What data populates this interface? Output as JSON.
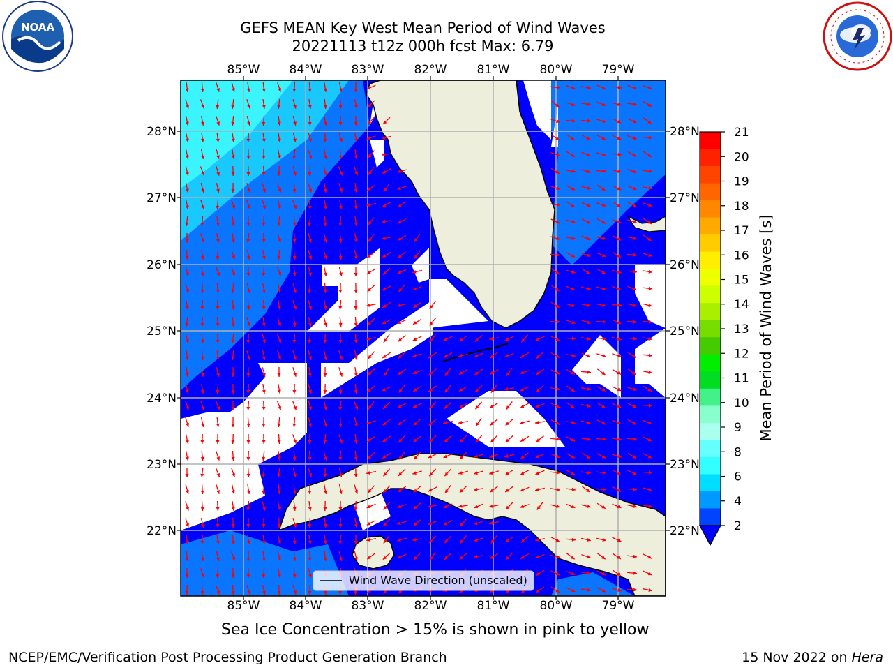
{
  "title_line1": "GEFS MEAN Key West Mean Period of Wind Waves",
  "title_line2": "20221113 t12z 000h fcst   Max: 6.79",
  "map": {
    "lon_labels": [
      "85°W",
      "84°W",
      "83°W",
      "82°W",
      "81°W",
      "80°W",
      "79°W"
    ],
    "lat_labels": [
      "28°N",
      "27°N",
      "26°N",
      "25°N",
      "24°N",
      "23°N",
      "22°N"
    ],
    "legend_label": "Wind Wave Direction (unscaled)",
    "colors": {
      "land": "#eeeedd",
      "ocean_low": "#0000ff",
      "ocean_2_4": "#0a76ff",
      "ocean_4_6": "#19c8ff",
      "ocean_6_8": "#3af5ff",
      "arrow": "#ff0000",
      "grid": "#b0b0b0"
    }
  },
  "colorbar": {
    "label": "Mean Period of Wind Waves [s]",
    "ticks": [
      "21",
      "20",
      "19",
      "18",
      "17",
      "16",
      "15",
      "14",
      "13",
      "12",
      "11",
      "10",
      "9",
      "8",
      "6",
      "4",
      "2"
    ],
    "colors": [
      "#ff0000",
      "#ff2200",
      "#ff4400",
      "#ff6600",
      "#ff8800",
      "#ffaa00",
      "#ffcc00",
      "#ffee00",
      "#eeff00",
      "#ccff00",
      "#aaee00",
      "#77dd00",
      "#44cc00",
      "#00ee00",
      "#00dd22",
      "#44f088",
      "#88ffcc",
      "#aaffee",
      "#66ffff",
      "#33ffff",
      "#00ddff",
      "#0099ff",
      "#0044ff"
    ]
  },
  "ice_note": "Sea Ice Concentration > 15% is shown in pink to yellow",
  "footer_left": "NCEP/EMC/Verification Post Processing Product Generation Branch",
  "footer_date": "15 Nov 2022 on ",
  "footer_machine": "Hera",
  "logos": {
    "noaa_text": "NOAA"
  }
}
